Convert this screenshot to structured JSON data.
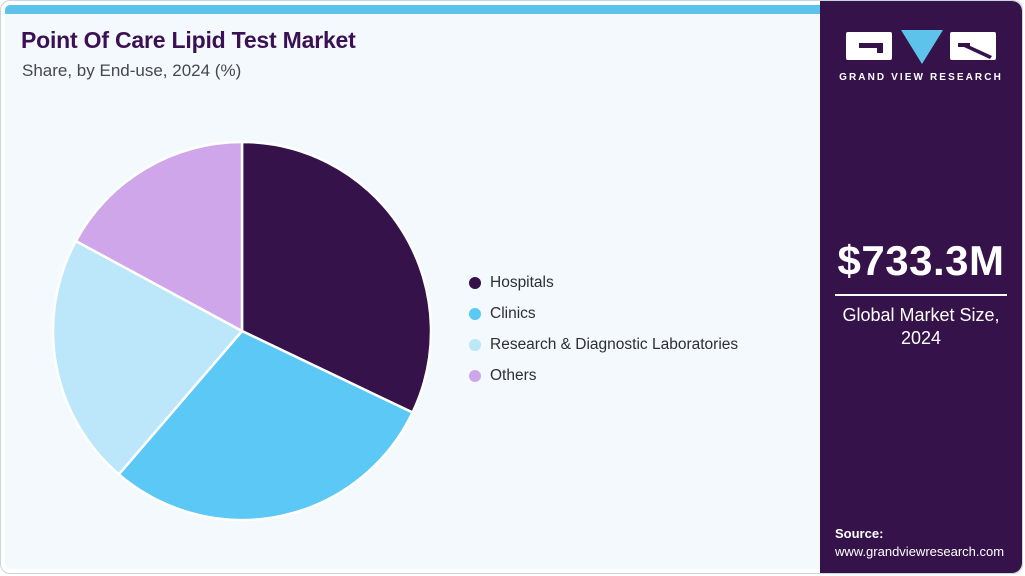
{
  "header": {
    "title": "Point Of Care Lipid Test Market",
    "subtitle": "Share, by End-use, 2024 (%)"
  },
  "chart_data": {
    "type": "pie",
    "title": "Point Of Care Lipid Test Market Share, by End-use, 2024 (%)",
    "categories": [
      "Hospitals",
      "Clinics",
      "Research & Diagnostic Laboratories",
      "Others"
    ],
    "values": [
      32.1,
      29.2,
      21.6,
      17.1
    ],
    "unit": "%",
    "colors": [
      "#351249",
      "#5bc8f5",
      "#bce7fa",
      "#d0a6ea"
    ],
    "start_angle_deg": 0,
    "direction": "clockwise",
    "legend_position": "right",
    "data_labels_shown": false
  },
  "brand": {
    "logo_text": "GRAND VIEW RESEARCH"
  },
  "sidebar": {
    "market_size_value": "$733.3M",
    "market_size_label": "Global Market Size, 2024",
    "source_label": "Source:",
    "source_url": "www.grandviewresearch.com"
  },
  "theme": {
    "accent_bar_blue": "#5ec3ea",
    "brand_purple": "#351249",
    "panel_background": "#f3f9fc",
    "title_color": "#3a1253",
    "slice_gap_color": "#ffffff"
  }
}
